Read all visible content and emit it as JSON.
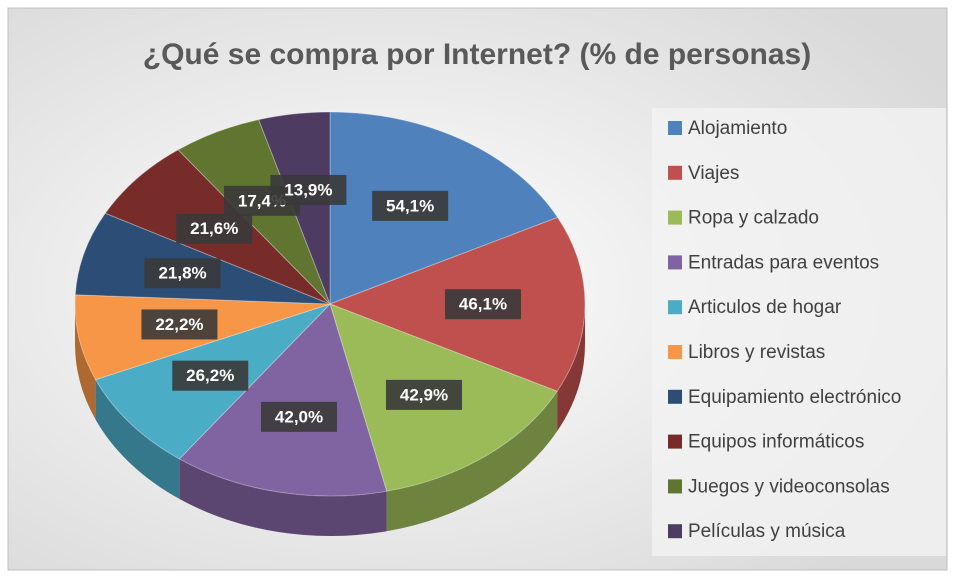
{
  "chart_data": {
    "type": "pie",
    "title": "¿Qué se compra por Internet? (% de personas)",
    "categories": [
      "Alojamiento",
      "Viajes",
      "Ropa y calzado",
      "Entradas para eventos",
      "Articulos de hogar",
      "Libros y revistas",
      "Equipamiento electrónico",
      "Equipos informáticos",
      "Juegos y videoconsolas",
      "Películas y música"
    ],
    "values": [
      54.1,
      46.1,
      42.9,
      42.0,
      26.2,
      22.2,
      21.8,
      21.6,
      17.4,
      13.9
    ],
    "value_labels": [
      "54,1%",
      "46,1%",
      "42,9%",
      "42,0%",
      "26,2%",
      "22,2%",
      "21,8%",
      "21,6%",
      "17,4%",
      "13,9%"
    ],
    "colors": [
      "#4f81bd",
      "#c0504d",
      "#9bbb59",
      "#8064a2",
      "#4bacc6",
      "#f79646",
      "#2c4d75",
      "#772c2a",
      "#5f7530",
      "#4d3b62"
    ],
    "legend": "right"
  }
}
